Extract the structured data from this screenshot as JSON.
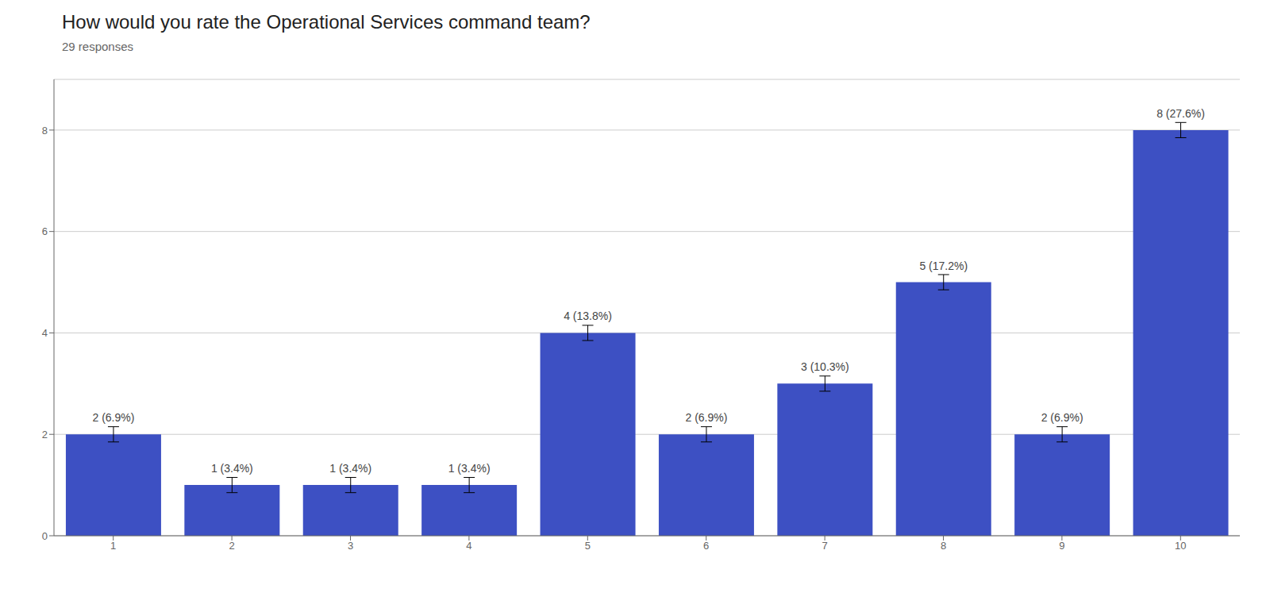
{
  "chart_data": {
    "type": "bar",
    "title": "How would you rate the Operational Services command team?",
    "subtitle": "29 responses",
    "categories": [
      "1",
      "2",
      "3",
      "4",
      "5",
      "6",
      "7",
      "8",
      "9",
      "10"
    ],
    "values": [
      2,
      1,
      1,
      1,
      4,
      2,
      3,
      5,
      2,
      8
    ],
    "value_labels": [
      "2 (6.9%)",
      "1 (3.4%)",
      "1 (3.4%)",
      "1 (3.4%)",
      "4 (13.8%)",
      "2 (6.9%)",
      "3 (10.3%)",
      "5 (17.2%)",
      "2 (6.9%)",
      "8 (27.6%)"
    ],
    "error": [
      0.15,
      0.15,
      0.15,
      0.15,
      0.15,
      0.15,
      0.15,
      0.15,
      0.15,
      0.15
    ],
    "color": "#3d50c3",
    "ylim": [
      0,
      9.0
    ],
    "yticks": [
      0,
      2,
      4,
      6,
      8
    ],
    "grid": true,
    "data_labels": true
  }
}
